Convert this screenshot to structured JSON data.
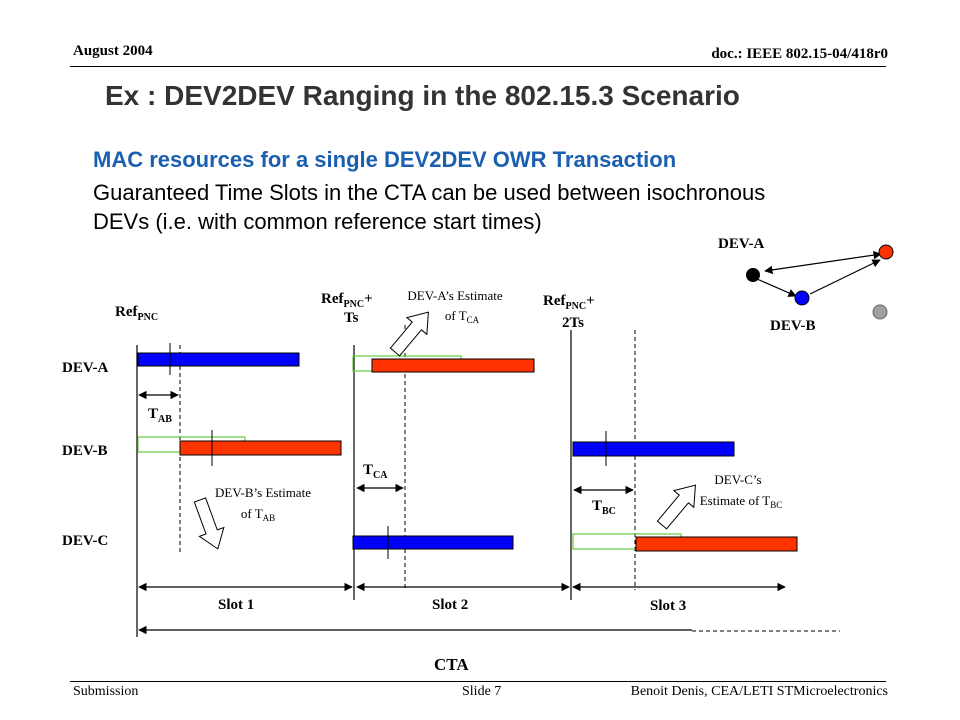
{
  "header": {
    "date": "August 2004",
    "doc_id": "doc.: IEEE 802.15-04/418r0"
  },
  "title": "Ex : DEV2DEV Ranging in the 802.15.3 Scenario",
  "body": {
    "heading": "MAC resources for a single DEV2DEV OWR Transaction",
    "line1": "Guaranteed Time Slots in the CTA can be used between isochronous",
    "line2": "DEVs (i.e. with common reference start times)"
  },
  "diagram": {
    "row_labels": [
      "DEV-A",
      "DEV-B",
      "DEV-C"
    ],
    "ref_labels": [
      {
        "main": "Ref",
        "sub": "PNC",
        "suffix": ""
      },
      {
        "main": "Ref",
        "sub": "PNC",
        "suffix": "+",
        "line2": "Ts"
      },
      {
        "main": "Ref",
        "sub": "PNC",
        "suffix": "+",
        "line2": "2Ts"
      }
    ],
    "t_labels": [
      {
        "main": "T",
        "sub": "AB"
      },
      {
        "main": "T",
        "sub": "CA"
      },
      {
        "main": "T",
        "sub": "BC"
      }
    ],
    "estimates": {
      "dev_a": {
        "line1": "DEV-A’s Estimate",
        "line2_main": "of  T",
        "line2_sub": "CA"
      },
      "dev_b": {
        "line1": "DEV-B’s Estimate",
        "line2_main": "of  T",
        "line2_sub": "AB"
      },
      "dev_c": {
        "line1": "DEV-C’s",
        "line2_main": "Estimate of T",
        "line2_sub": "BC"
      }
    },
    "slots": [
      "Slot 1",
      "Slot 2",
      "Slot 3"
    ],
    "cta": "CTA",
    "mini_labels": {
      "a": "DEV-A",
      "b": "DEV-B"
    },
    "colors": {
      "blue": "#0000ff",
      "red": "#ff3300",
      "green": "#66cc44",
      "gray": "#a0a0a0"
    }
  },
  "footer": {
    "left": "Submission",
    "center": "Slide 7",
    "right": "Benoit Denis, CEA/LETI STMicroelectronics"
  }
}
